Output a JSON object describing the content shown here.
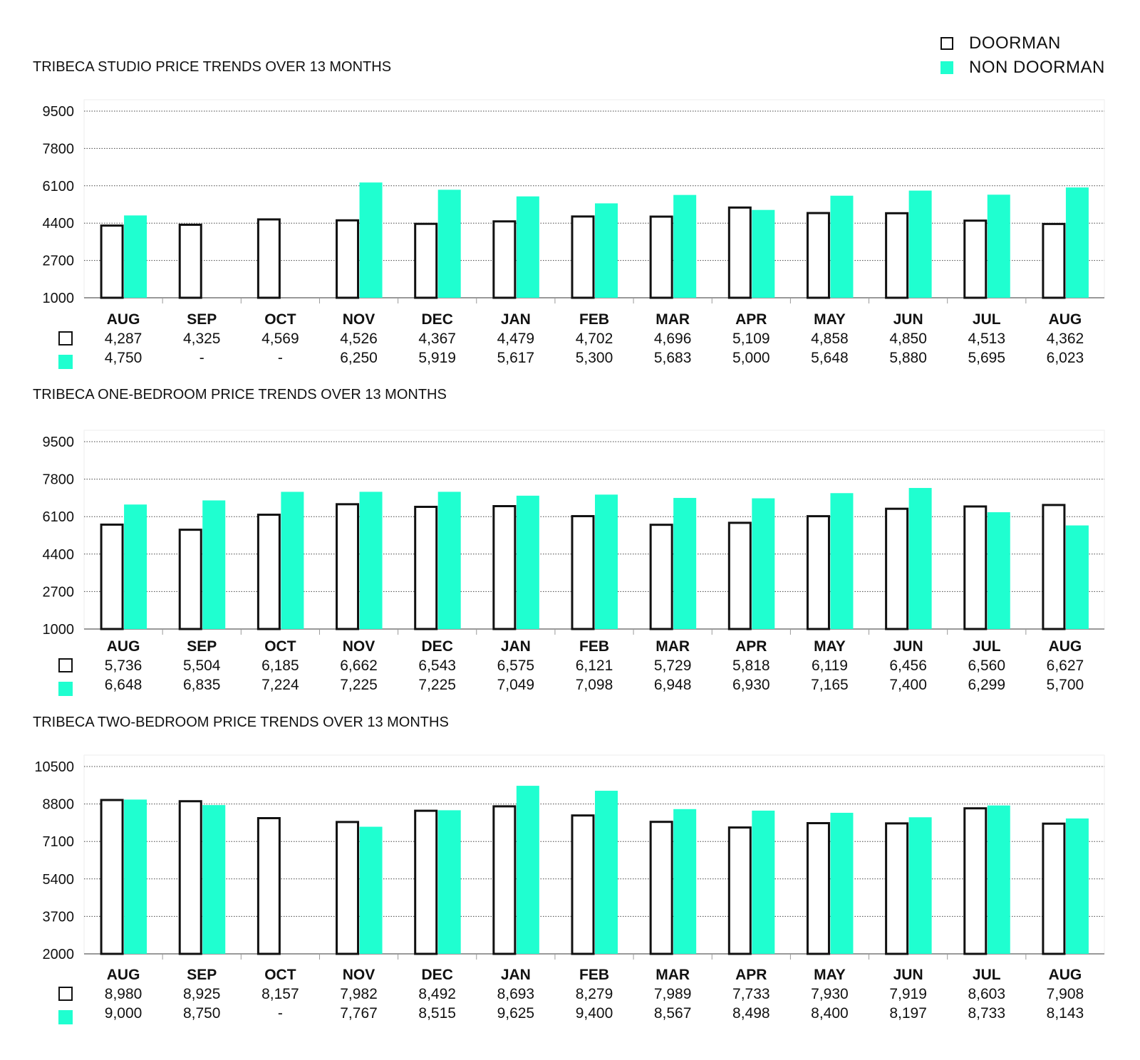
{
  "legend": {
    "doorman_label": "DOORMAN",
    "non_doorman_label": "NON DOORMAN"
  },
  "colors": {
    "doorman_fill": "#ffffff",
    "doorman_stroke": "#111111",
    "non_doorman": "#1fffd0",
    "grid": "#444444"
  },
  "chart_data": [
    {
      "type": "bar",
      "title": "TRIBECA STUDIO PRICE TRENDS OVER 13 MONTHS",
      "categories": [
        "AUG",
        "SEP",
        "OCT",
        "NOV",
        "DEC",
        "JAN",
        "FEB",
        "MAR",
        "APR",
        "MAY",
        "JUN",
        "JUL",
        "AUG"
      ],
      "yticks": [
        "9500",
        "7800",
        "6100",
        "4400",
        "2700",
        "1000"
      ],
      "ylim": [
        1000,
        9500
      ],
      "grid": true,
      "series": [
        {
          "name": "DOORMAN",
          "values": [
            4287,
            4325,
            4569,
            4526,
            4367,
            4479,
            4702,
            4696,
            5109,
            4858,
            4850,
            4513,
            4362
          ],
          "labels": [
            "4,287",
            "4,325",
            "4,569",
            "4,526",
            "4,367",
            "4,479",
            "4,702",
            "4,696",
            "5,109",
            "4,858",
            "4,850",
            "4,513",
            "4,362"
          ]
        },
        {
          "name": "NON DOORMAN",
          "values": [
            4750,
            null,
            null,
            6250,
            5919,
            5617,
            5300,
            5683,
            5000,
            5648,
            5880,
            5695,
            6023
          ],
          "labels": [
            "4,750",
            "-",
            "-",
            "6,250",
            "5,919",
            "5,617",
            "5,300",
            "5,683",
            "5,000",
            "5,648",
            "5,880",
            "5,695",
            "6,023"
          ]
        }
      ]
    },
    {
      "type": "bar",
      "title": "TRIBECA ONE-BEDROOM PRICE TRENDS OVER 13 MONTHS",
      "categories": [
        "AUG",
        "SEP",
        "OCT",
        "NOV",
        "DEC",
        "JAN",
        "FEB",
        "MAR",
        "APR",
        "MAY",
        "JUN",
        "JUL",
        "AUG"
      ],
      "yticks": [
        "9500",
        "7800",
        "6100",
        "4400",
        "2700",
        "1000"
      ],
      "ylim": [
        1000,
        9500
      ],
      "grid": true,
      "series": [
        {
          "name": "DOORMAN",
          "values": [
            5736,
            5504,
            6185,
            6662,
            6543,
            6575,
            6121,
            5729,
            5818,
            6119,
            6456,
            6560,
            6627
          ],
          "labels": [
            "5,736",
            "5,504",
            "6,185",
            "6,662",
            "6,543",
            "6,575",
            "6,121",
            "5,729",
            "5,818",
            "6,119",
            "6,456",
            "6,560",
            "6,627"
          ]
        },
        {
          "name": "NON DOORMAN",
          "values": [
            6648,
            6835,
            7224,
            7225,
            7225,
            7049,
            7098,
            6948,
            6930,
            7165,
            7400,
            6299,
            5700
          ],
          "labels": [
            "6,648",
            "6,835",
            "7,224",
            "7,225",
            "7,225",
            "7,049",
            "7,098",
            "6,948",
            "6,930",
            "7,165",
            "7,400",
            "6,299",
            "5,700"
          ]
        }
      ]
    },
    {
      "type": "bar",
      "title": "TRIBECA TWO-BEDROOM PRICE TRENDS OVER 13 MONTHS",
      "categories": [
        "AUG",
        "SEP",
        "OCT",
        "NOV",
        "DEC",
        "JAN",
        "FEB",
        "MAR",
        "APR",
        "MAY",
        "JUN",
        "JUL",
        "AUG"
      ],
      "yticks": [
        "10500",
        "8800",
        "7100",
        "5400",
        "3700",
        "2000"
      ],
      "ylim": [
        2000,
        10500
      ],
      "grid": true,
      "series": [
        {
          "name": "DOORMAN",
          "values": [
            8980,
            8925,
            8157,
            7982,
            8492,
            8693,
            8279,
            7989,
            7733,
            7930,
            7919,
            8603,
            7908
          ],
          "labels": [
            "8,980",
            "8,925",
            "8,157",
            "7,982",
            "8,492",
            "8,693",
            "8,279",
            "7,989",
            "7,733",
            "7,930",
            "7,919",
            "8,603",
            "7,908"
          ]
        },
        {
          "name": "NON DOORMAN",
          "values": [
            9000,
            8750,
            null,
            7767,
            8515,
            9625,
            9400,
            8567,
            8498,
            8400,
            8197,
            8733,
            8143
          ],
          "labels": [
            "9,000",
            "8,750",
            "-",
            "7,767",
            "8,515",
            "9,625",
            "9,400",
            "8,567",
            "8,498",
            "8,400",
            "8,197",
            "8,733",
            "8,143"
          ]
        }
      ]
    }
  ]
}
